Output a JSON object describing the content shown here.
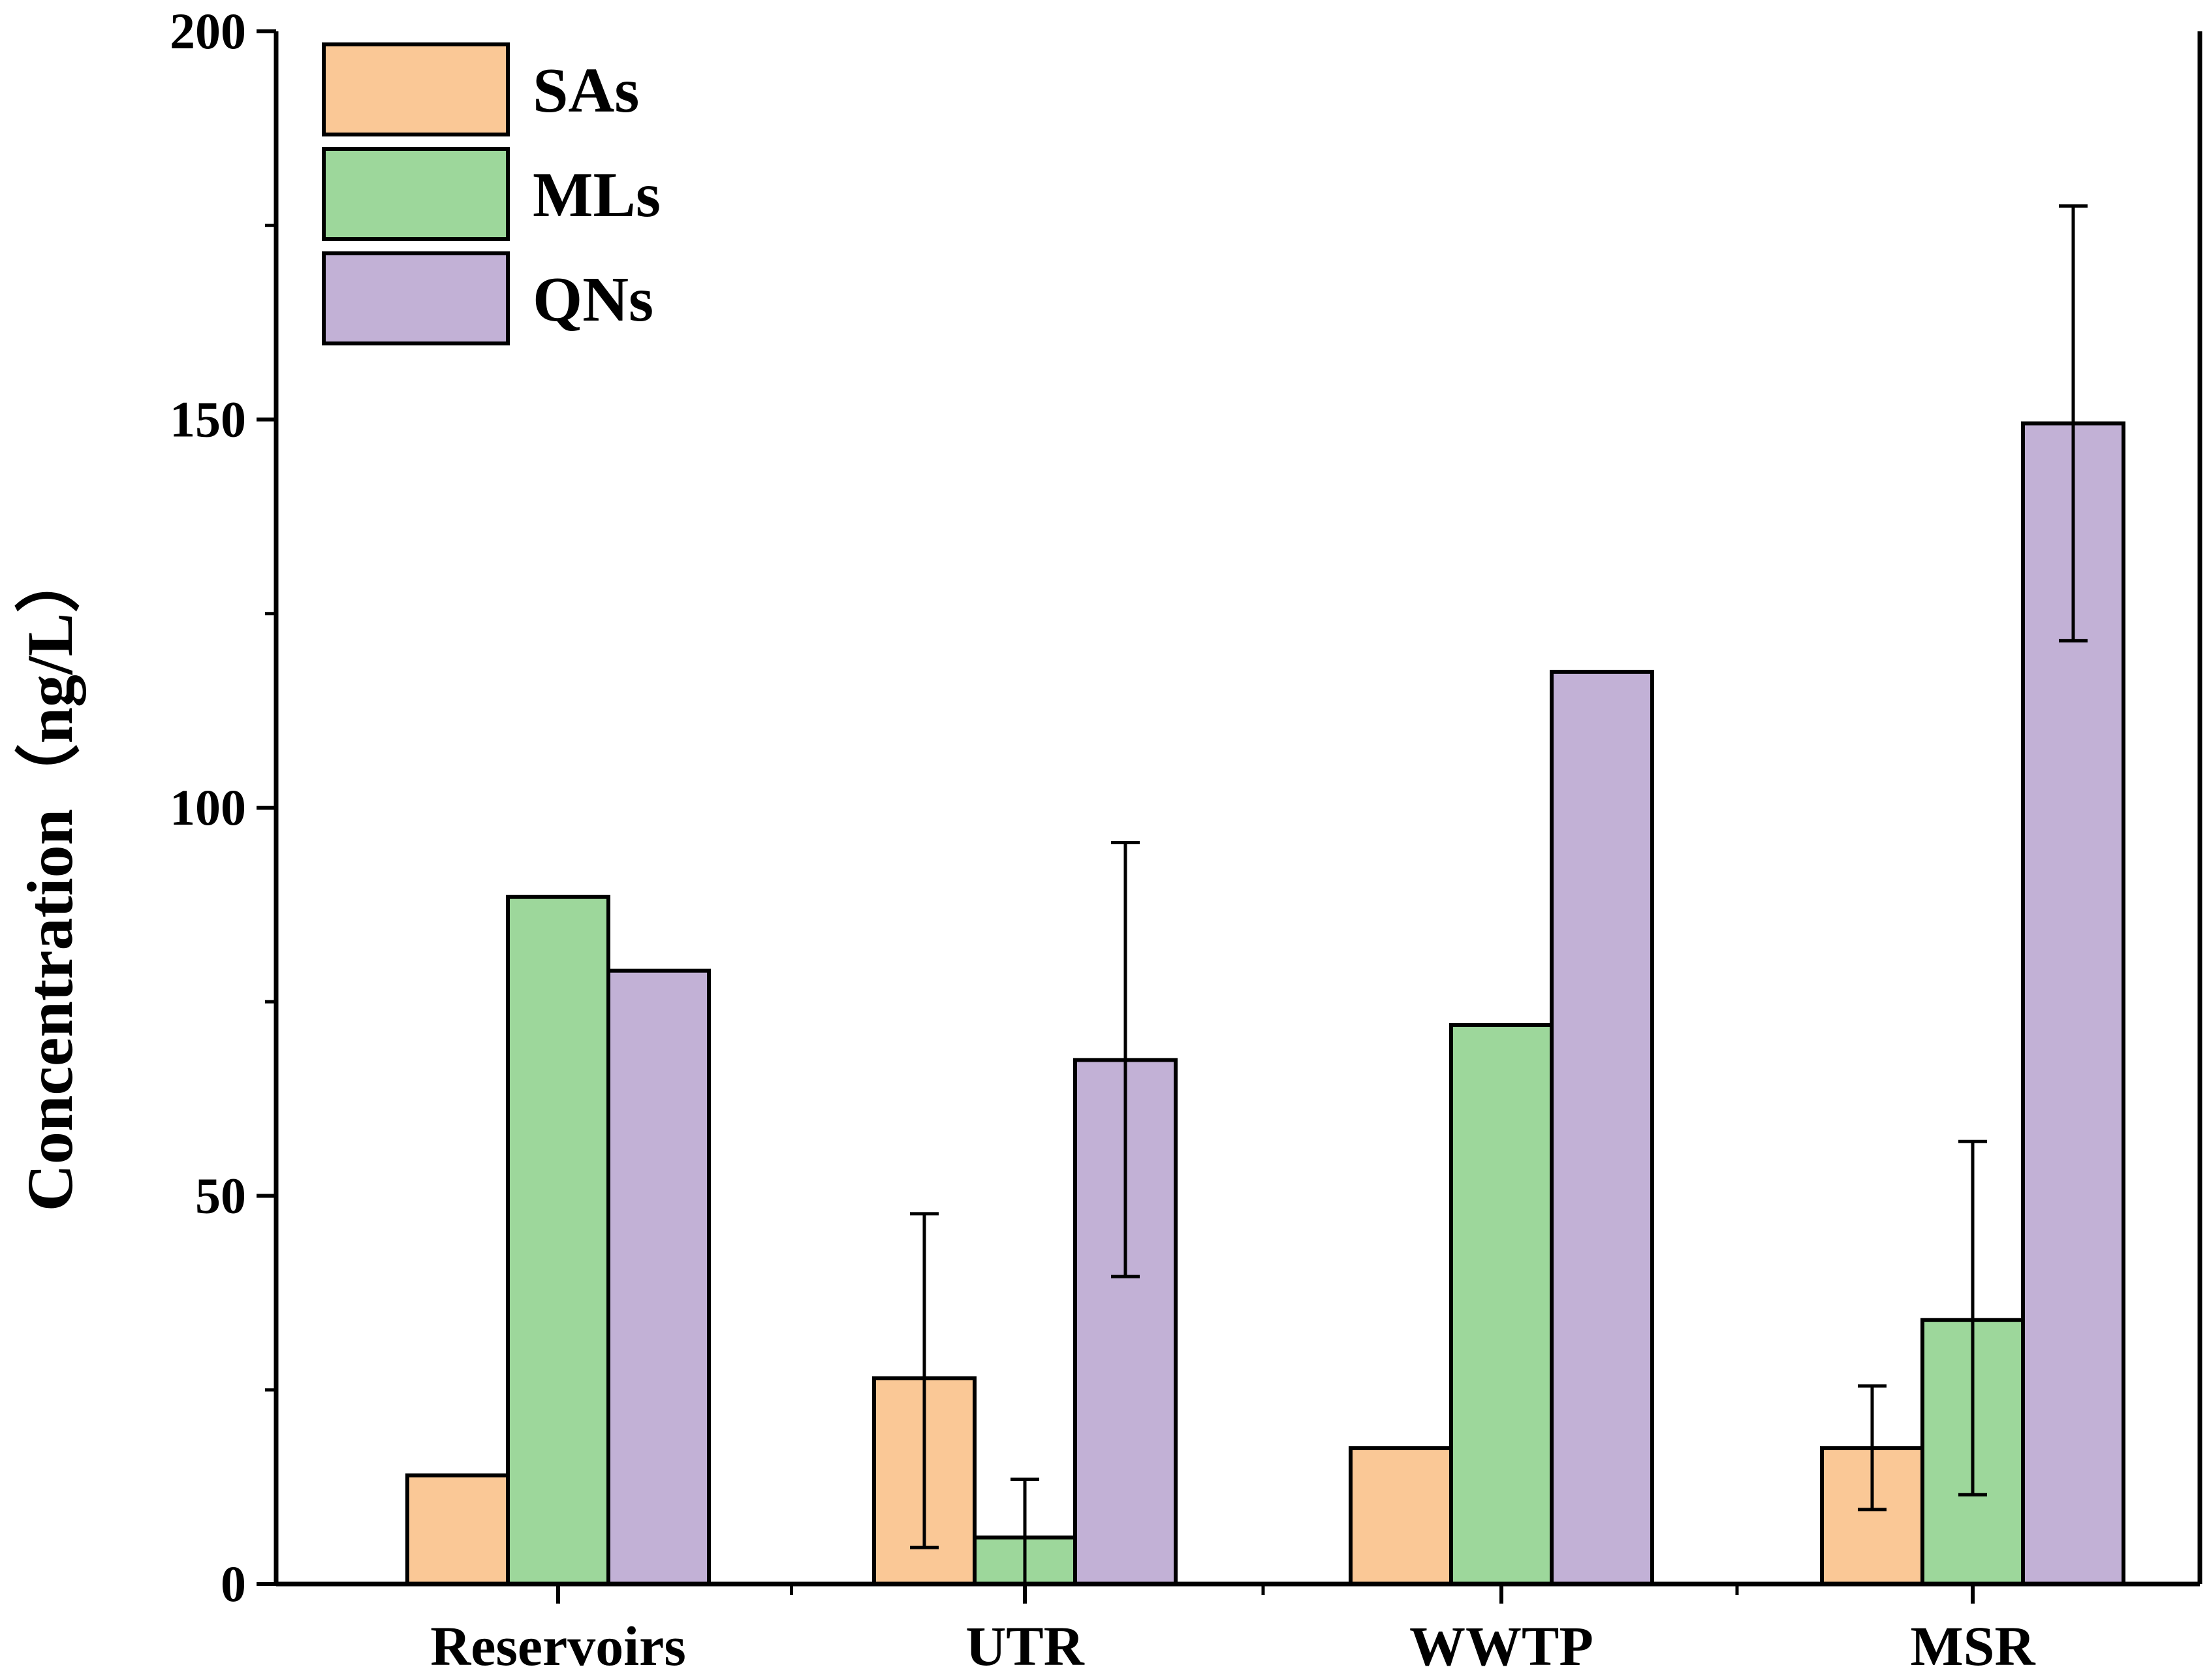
{
  "chart_data": {
    "type": "bar",
    "title": "",
    "xlabel": "",
    "ylabel": "Concentration（ng/L）",
    "ylim": [
      0,
      200
    ],
    "yticks": [
      0,
      50,
      100,
      150,
      200
    ],
    "ytick_labels": [
      "0",
      "50",
      "100",
      "150",
      "200"
    ],
    "categories": [
      "Reservoirs",
      "UTR",
      "WWTP",
      "MSR"
    ],
    "series": [
      {
        "name": "SAs",
        "color": "#FAC896",
        "values": [
          14,
          26.5,
          17.5,
          17.5
        ],
        "error_low": [
          null,
          4.7,
          null,
          9.6
        ],
        "error_high": [
          null,
          47.7,
          null,
          25.5
        ]
      },
      {
        "name": "MLs",
        "color": "#9DD79B",
        "values": [
          88.5,
          6,
          72,
          34
        ],
        "error_low": [
          null,
          0,
          null,
          11.5
        ],
        "error_high": [
          null,
          13.5,
          null,
          57
        ]
      },
      {
        "name": "QNs",
        "color": "#C2B1D6",
        "values": [
          79,
          67.5,
          117.5,
          149.5
        ],
        "error_low": [
          null,
          39.6,
          null,
          121.5
        ],
        "error_high": [
          null,
          95.5,
          null,
          177.5
        ]
      }
    ],
    "legend": {
      "position": "top-left",
      "entries": [
        "SAs",
        "MLs",
        "QNs"
      ]
    },
    "grid": false
  }
}
